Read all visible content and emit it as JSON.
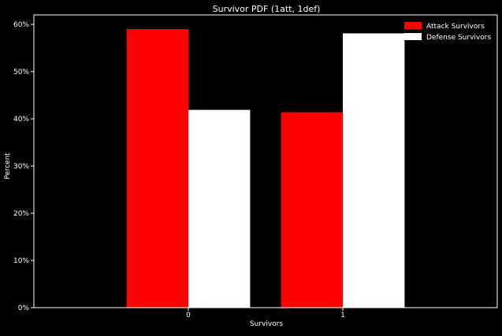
{
  "chart_data": {
    "type": "bar",
    "title": "Survivor PDF (1att, 1def)",
    "xlabel": "Survivors",
    "ylabel": "Percent",
    "categories": [
      "0",
      "1"
    ],
    "series": [
      {
        "name": "Attack Survivors",
        "values": [
          59.0,
          41.4
        ],
        "color": "#ff0000"
      },
      {
        "name": "Defense Survivors",
        "values": [
          41.9,
          58.1
        ],
        "color": "#ffffff"
      }
    ],
    "ylim": [
      0,
      62
    ],
    "yticks": [
      0,
      10,
      20,
      30,
      40,
      50,
      60
    ],
    "ytick_labels": [
      "0%",
      "10%",
      "20%",
      "30%",
      "40%",
      "50%",
      "60%"
    ],
    "grid": false,
    "legend_position": "top-right",
    "colors": {
      "background": "#000000",
      "axes": "#ffffff",
      "text": "#ffffff"
    }
  }
}
